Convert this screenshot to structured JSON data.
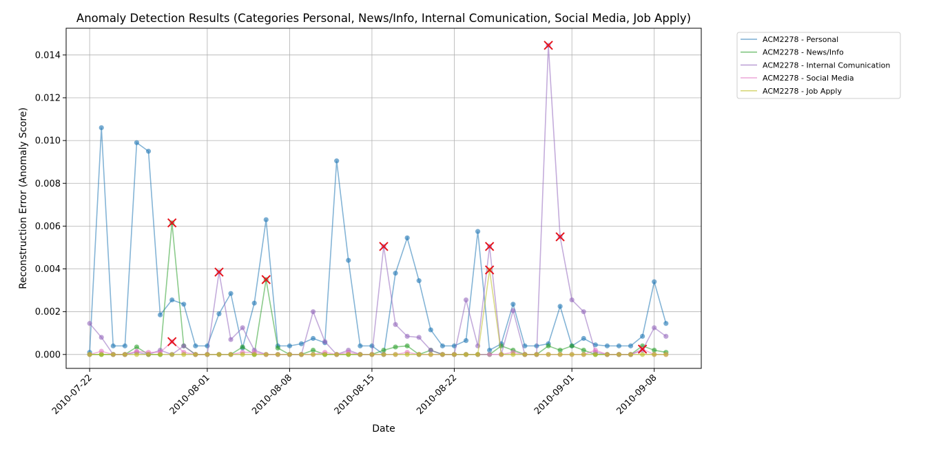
{
  "chart_data": {
    "type": "line",
    "title": "Anomaly Detection Results (Categories Personal, News/Info, Internal Comunication, Social Media, Job Apply)",
    "xlabel": "Date",
    "ylabel": "Reconstruction Error (Anomaly Score)",
    "ylim": [
      -0.00065,
      0.01525
    ],
    "xlim": [
      "2010-07-20",
      "2010-09-12"
    ],
    "grid": true,
    "legend_position": "outside-top-right",
    "x_ticks": [
      "2010-07-22",
      "2010-08-01",
      "2010-08-08",
      "2010-08-15",
      "2010-08-22",
      "2010-09-01",
      "2010-09-08"
    ],
    "y_ticks": [
      0.0,
      0.002,
      0.004,
      0.006,
      0.008,
      0.01,
      0.012,
      0.014
    ],
    "y_tick_labels": [
      "0.000",
      "0.002",
      "0.004",
      "0.006",
      "0.008",
      "0.010",
      "0.012",
      "0.014"
    ],
    "x": [
      "2010-07-22",
      "2010-07-23",
      "2010-07-24",
      "2010-07-25",
      "2010-07-26",
      "2010-07-27",
      "2010-07-28",
      "2010-07-29",
      "2010-07-30",
      "2010-07-31",
      "2010-08-01",
      "2010-08-02",
      "2010-08-03",
      "2010-08-04",
      "2010-08-05",
      "2010-08-06",
      "2010-08-07",
      "2010-08-08",
      "2010-08-09",
      "2010-08-10",
      "2010-08-11",
      "2010-08-12",
      "2010-08-13",
      "2010-08-14",
      "2010-08-15",
      "2010-08-16",
      "2010-08-17",
      "2010-08-18",
      "2010-08-19",
      "2010-08-20",
      "2010-08-21",
      "2010-08-22",
      "2010-08-23",
      "2010-08-24",
      "2010-08-25",
      "2010-08-26",
      "2010-08-27",
      "2010-08-28",
      "2010-08-29",
      "2010-08-30",
      "2010-08-31",
      "2010-09-01",
      "2010-09-02",
      "2010-09-03",
      "2010-09-04",
      "2010-09-05",
      "2010-09-06",
      "2010-09-07",
      "2010-09-08",
      "2010-09-09"
    ],
    "series": [
      {
        "name": "ACM2278 - Personal",
        "color": "#1f77b4",
        "values": [
          0.0001,
          0.0106,
          0.0004,
          0.0004,
          0.0099,
          0.0095,
          0.00185,
          0.00255,
          0.00235,
          0.0004,
          0.0004,
          0.0019,
          0.00285,
          0.0003,
          0.0024,
          0.0063,
          0.0004,
          0.0004,
          0.0005,
          0.00075,
          0.00055,
          0.00905,
          0.0044,
          0.0004,
          0.0004,
          0.0,
          0.0038,
          0.00545,
          0.00345,
          0.00115,
          0.0004,
          0.0004,
          0.00065,
          0.00575,
          0.0002,
          0.0005,
          0.00235,
          0.0004,
          0.0004,
          0.0005,
          0.00225,
          0.0004,
          0.00075,
          0.00045,
          0.0004,
          0.0004,
          0.0004,
          0.00085,
          0.0034,
          0.00145
        ]
      },
      {
        "name": "ACM2278 - News/Info",
        "color": "#2ca02c",
        "values": [
          0.0,
          0.0,
          0.0,
          0.0,
          0.00035,
          0.0,
          0.0,
          0.00615,
          0.0004,
          0.0,
          0.0,
          0.0,
          0.0,
          0.00035,
          0.0,
          0.0035,
          0.0003,
          0.0,
          0.0,
          0.0002,
          0.0,
          0.0,
          0.0,
          0.0,
          0.0,
          0.0002,
          0.00035,
          0.0004,
          0.0,
          0.0002,
          0.0,
          0.0,
          0.0,
          0.0,
          0.0,
          0.0004,
          0.0002,
          0.0,
          0.0,
          0.0004,
          0.0002,
          0.0004,
          0.0002,
          0.0,
          0.0,
          0.0,
          0.0,
          0.0004,
          0.0002,
          0.0001
        ]
      },
      {
        "name": "ACM2278 - Internal Comunication",
        "color": "#9467bd",
        "values": [
          0.00145,
          0.0008,
          0.0,
          0.0,
          0.0001,
          0.0,
          0.0002,
          0.0,
          0.0004,
          0.0,
          0.0,
          0.00385,
          0.0007,
          0.00125,
          0.0002,
          0.0,
          0.0,
          0.0,
          0.0,
          0.002,
          0.0006,
          0.0,
          0.0002,
          0.0,
          0.0,
          0.00505,
          0.0014,
          0.00085,
          0.0008,
          0.0002,
          0.0,
          0.0,
          0.00255,
          0.0004,
          0.00505,
          0.0,
          0.00205,
          0.0,
          0.0,
          0.01445,
          0.0055,
          0.00255,
          0.002,
          0.0001,
          0.0,
          0.0,
          0.0,
          0.0002,
          0.00125,
          0.00085
        ]
      },
      {
        "name": "ACM2278 - Social Media",
        "color": "#e377c2",
        "values": [
          0.0,
          0.00015,
          0.0,
          0.0,
          0.00015,
          0.0001,
          0.0001,
          0.0006,
          0.0001,
          0.0,
          0.0,
          0.0,
          0.0,
          0.0001,
          0.0001,
          0.0,
          0.0,
          0.0,
          0.0,
          0.0,
          0.0001,
          0.0,
          0.0001,
          0.0,
          0.0,
          0.0,
          0.0,
          0.0001,
          0.0,
          0.0,
          0.0,
          0.0,
          0.0,
          0.0,
          0.0,
          0.0,
          0.0001,
          0.0,
          0.0,
          0.0,
          0.0,
          0.0,
          0.0,
          0.0002,
          0.0,
          0.0,
          0.0,
          0.00025,
          0.0,
          0.0
        ]
      },
      {
        "name": "ACM2278 - Job Apply",
        "color": "#bcbd22",
        "values": [
          0.0,
          0.0,
          0.0,
          0.0,
          0.0,
          0.0,
          0.0,
          0.0,
          0.0,
          0.0,
          0.0,
          0.0,
          0.0,
          0.0,
          0.0,
          0.0,
          0.0,
          0.0,
          0.0,
          0.0,
          0.0,
          0.0,
          0.0,
          0.0,
          0.0,
          0.0,
          0.0,
          0.0,
          0.0,
          0.0,
          0.0,
          0.0,
          0.0,
          0.0,
          0.00395,
          0.0,
          0.0,
          0.0,
          0.0,
          0.0,
          0.0,
          0.0,
          0.0,
          0.0,
          0.0,
          0.0,
          0.0,
          0.0,
          0.0,
          0.0
        ]
      }
    ],
    "anomalies": [
      {
        "x": "2010-07-29",
        "y": 0.00615
      },
      {
        "x": "2010-07-29",
        "y": 0.0006
      },
      {
        "x": "2010-08-02",
        "y": 0.00385
      },
      {
        "x": "2010-08-06",
        "y": 0.0035
      },
      {
        "x": "2010-08-16",
        "y": 0.00505
      },
      {
        "x": "2010-08-25",
        "y": 0.00505
      },
      {
        "x": "2010-08-25",
        "y": 0.00395
      },
      {
        "x": "2010-08-30",
        "y": 0.01445
      },
      {
        "x": "2010-08-31",
        "y": 0.0055
      },
      {
        "x": "2010-09-07",
        "y": 0.00025
      }
    ],
    "anomaly_color": "#e6121b"
  }
}
